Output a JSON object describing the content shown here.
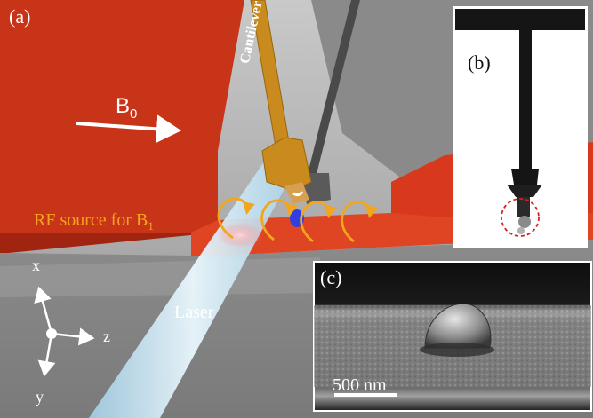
{
  "panel_a": {
    "label": "(a)",
    "field_b0": {
      "base": "B",
      "sub": "0"
    },
    "rf_source": {
      "text": "RF source for B",
      "sub": "1"
    },
    "cantilever": "Cantilever",
    "laser": "Laser",
    "axes": {
      "x": "x",
      "y": "y",
      "z": "z"
    }
  },
  "panel_b": {
    "label": "(b)"
  },
  "panel_c": {
    "label": "(c)",
    "scale_bar": "500 nm"
  },
  "colors": {
    "rf_red": "#d8391c",
    "cantilever_gold": "#c98a1e",
    "field_arrows": "#f3a51c",
    "laser": "#cfeaf6",
    "sample_blue": "#2f3fe0"
  }
}
